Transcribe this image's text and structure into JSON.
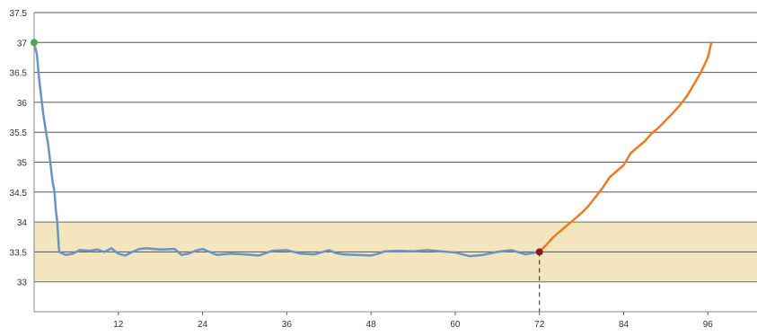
{
  "chart_data": {
    "type": "line",
    "title": "",
    "xlabel": "",
    "ylabel": "",
    "xlim": [
      0,
      103
    ],
    "ylim": [
      32.5,
      37.5
    ],
    "x_ticks": [
      12,
      24,
      36,
      48,
      60,
      72,
      84,
      96
    ],
    "x_tick_labels": [
      "12",
      "24",
      "36",
      "48",
      "60",
      "72",
      "84",
      "96"
    ],
    "y_ticks": [
      33,
      33.5,
      34,
      34.5,
      35,
      35.5,
      36,
      36.5,
      37,
      37.5
    ],
    "y_tick_labels": [
      "33",
      "33.5",
      "34",
      "34.5",
      "35",
      "35.5",
      "36",
      "36.5",
      "37",
      "37.5"
    ],
    "grid": {
      "horizontal": true,
      "vertical": false
    },
    "target_band": {
      "y_from": 33,
      "y_to": 34,
      "color": "#f3e5bd"
    },
    "vertical_marker": {
      "x": 72,
      "style": "dashed"
    },
    "colors": {
      "cooling": "#6b94c4",
      "rewarming": "#f07a22",
      "start_point": "#3fae49",
      "end_point": "#8b1a1a",
      "grid": "#555555",
      "band_edge": "#6b6b6b"
    },
    "series": [
      {
        "color": "#6b94c4",
        "points": [
          [
            0,
            37.0
          ],
          [
            0.4,
            36.8
          ],
          [
            0.7,
            36.4
          ],
          [
            1.0,
            36.1
          ],
          [
            1.3,
            35.8
          ],
          [
            1.7,
            35.5
          ],
          [
            2.0,
            35.3
          ],
          [
            2.3,
            35.0
          ],
          [
            2.6,
            34.7
          ],
          [
            2.9,
            34.5
          ],
          [
            3.1,
            34.2
          ],
          [
            3.3,
            34.0
          ],
          [
            3.4,
            33.8
          ],
          [
            3.5,
            33.6
          ],
          [
            3.6,
            33.5
          ],
          [
            4.5,
            33.45
          ],
          [
            5.5,
            33.47
          ],
          [
            6.5,
            33.53
          ],
          [
            8,
            33.52
          ],
          [
            9,
            33.54
          ],
          [
            10,
            33.5
          ],
          [
            11,
            33.56
          ],
          [
            12,
            33.47
          ],
          [
            13,
            33.44
          ],
          [
            14,
            33.5
          ],
          [
            15,
            33.55
          ],
          [
            16,
            33.56
          ],
          [
            18,
            33.54
          ],
          [
            20,
            33.55
          ],
          [
            21,
            33.45
          ],
          [
            22,
            33.47
          ],
          [
            23,
            33.52
          ],
          [
            24,
            33.55
          ],
          [
            25,
            33.5
          ],
          [
            26,
            33.45
          ],
          [
            28,
            33.47
          ],
          [
            30,
            33.46
          ],
          [
            32,
            33.44
          ],
          [
            34,
            33.52
          ],
          [
            36,
            33.53
          ],
          [
            37,
            33.5
          ],
          [
            38,
            33.47
          ],
          [
            40,
            33.46
          ],
          [
            42,
            33.53
          ],
          [
            43,
            33.48
          ],
          [
            44,
            33.46
          ],
          [
            46,
            33.45
          ],
          [
            48,
            33.44
          ],
          [
            49,
            33.47
          ],
          [
            50,
            33.51
          ],
          [
            52,
            33.52
          ],
          [
            54,
            33.51
          ],
          [
            56,
            33.53
          ],
          [
            58,
            33.51
          ],
          [
            60,
            33.49
          ],
          [
            62,
            33.43
          ],
          [
            64,
            33.45
          ],
          [
            66,
            33.5
          ],
          [
            68,
            33.53
          ],
          [
            70,
            33.46
          ],
          [
            71,
            33.48
          ],
          [
            72,
            33.5
          ]
        ]
      },
      {
        "color": "#f07a22",
        "points": [
          [
            72,
            33.5
          ],
          [
            73,
            33.62
          ],
          [
            74,
            33.75
          ],
          [
            75,
            33.85
          ],
          [
            76,
            33.95
          ],
          [
            77,
            34.05
          ],
          [
            78,
            34.15
          ],
          [
            79,
            34.27
          ],
          [
            80,
            34.42
          ],
          [
            81,
            34.57
          ],
          [
            82,
            34.75
          ],
          [
            83,
            34.85
          ],
          [
            84,
            34.95
          ],
          [
            85,
            35.15
          ],
          [
            86,
            35.25
          ],
          [
            87,
            35.35
          ],
          [
            88,
            35.48
          ],
          [
            89,
            35.58
          ],
          [
            90,
            35.7
          ],
          [
            91,
            35.82
          ],
          [
            92,
            35.95
          ],
          [
            93,
            36.1
          ],
          [
            94,
            36.3
          ],
          [
            95,
            36.5
          ],
          [
            96,
            36.75
          ],
          [
            96.5,
            37.0
          ]
        ]
      }
    ],
    "markers": [
      {
        "x": 0,
        "y": 37.0,
        "color": "#3fae49"
      },
      {
        "x": 72,
        "y": 33.5,
        "color": "#8b1a1a"
      }
    ]
  }
}
